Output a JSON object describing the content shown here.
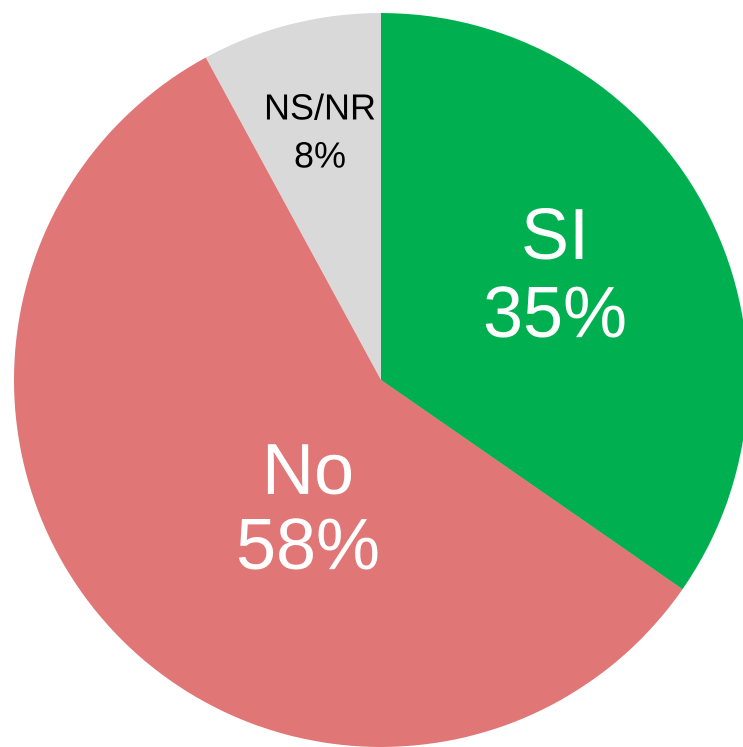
{
  "chart_data": {
    "type": "pie",
    "categories": [
      "SI",
      "No",
      "NS/NR"
    ],
    "values": [
      35,
      58,
      8
    ],
    "value_labels": [
      "35%",
      "58%",
      "8%"
    ],
    "colors": [
      "#00b050",
      "#e07676",
      "#d9d9d9"
    ]
  }
}
